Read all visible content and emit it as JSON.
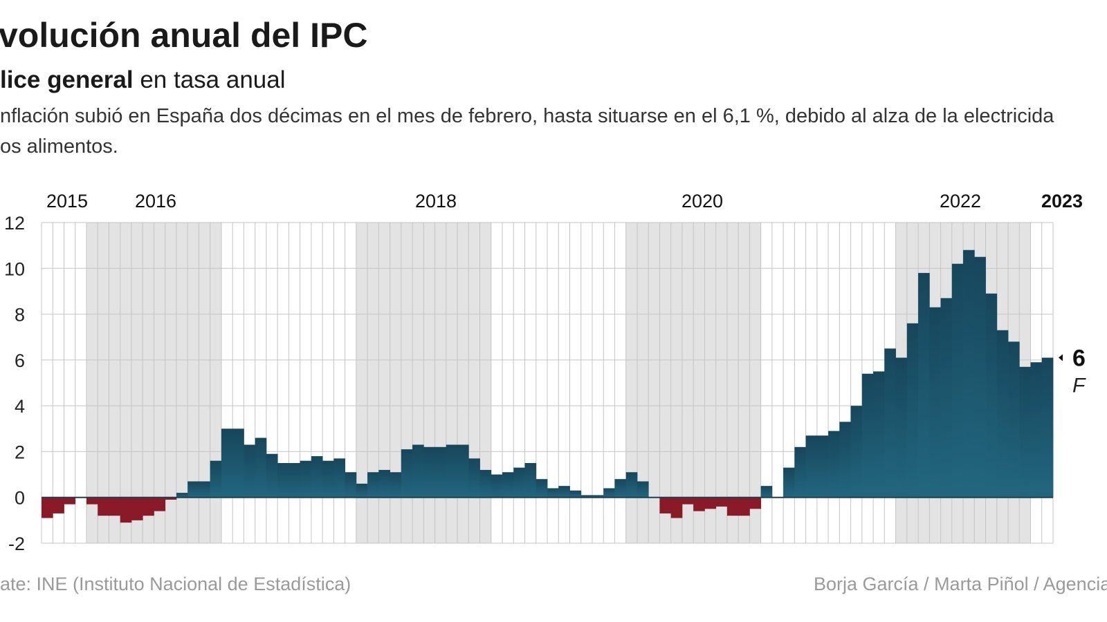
{
  "header": {
    "title": "volución anual del IPC",
    "subtitle_bold": "lice general",
    "subtitle_rest": " en tasa anual",
    "description_line1": "nflación subió en España dos décimas en el mes de febrero, hasta situarse en el 6,1 %, debido al alza de la electricida",
    "description_line2": "os alimentos."
  },
  "footer": {
    "source": "ate: INE (Instituto Nacional de Estadística)",
    "credits": "Borja García / Marta Piñol / Agencia"
  },
  "chart_data": {
    "type": "bar",
    "title": "volución anual del IPC",
    "ylim": [
      -2,
      12
    ],
    "yticks": [
      "12",
      "10",
      "8",
      "6",
      "4",
      "2",
      "0",
      "-2"
    ],
    "year_labels": [
      {
        "label": "2015",
        "bold": false
      },
      {
        "label": "2016",
        "bold": false
      },
      {
        "label": "2018",
        "bold": false
      },
      {
        "label": "2020",
        "bold": false
      },
      {
        "label": "2022",
        "bold": false
      },
      {
        "label": "2023",
        "bold": true
      }
    ],
    "x_start": "2015-09",
    "x_end": "2023-02",
    "shaded_years": [
      "2016",
      "2018",
      "2020",
      "2022"
    ],
    "grid": true,
    "colors": {
      "positive": "#1d5a73",
      "negative": "#8a1a28",
      "shade": "#e3e3e3"
    },
    "end_label": {
      "value": "6",
      "sub": "F"
    },
    "values": [
      -0.9,
      -0.7,
      -0.3,
      0.0,
      -0.3,
      -0.8,
      -0.8,
      -1.1,
      -1.0,
      -0.8,
      -0.6,
      -0.1,
      0.2,
      0.7,
      0.7,
      1.6,
      3.0,
      3.0,
      2.3,
      2.6,
      1.9,
      1.5,
      1.5,
      1.6,
      1.8,
      1.6,
      1.7,
      1.1,
      0.6,
      1.1,
      1.2,
      1.1,
      2.1,
      2.3,
      2.2,
      2.2,
      2.3,
      2.3,
      1.7,
      1.2,
      1.0,
      1.1,
      1.3,
      1.5,
      0.8,
      0.4,
      0.5,
      0.3,
      0.1,
      0.1,
      0.4,
      0.8,
      1.1,
      0.7,
      0.0,
      -0.7,
      -0.9,
      -0.3,
      -0.6,
      -0.5,
      -0.4,
      -0.8,
      -0.8,
      -0.5,
      0.5,
      0.0,
      1.3,
      2.2,
      2.7,
      2.7,
      2.9,
      3.3,
      4.0,
      5.4,
      5.5,
      6.5,
      6.1,
      7.6,
      9.8,
      8.3,
      8.7,
      10.2,
      10.8,
      10.5,
      8.9,
      7.3,
      6.8,
      5.7,
      5.9,
      6.1
    ]
  }
}
